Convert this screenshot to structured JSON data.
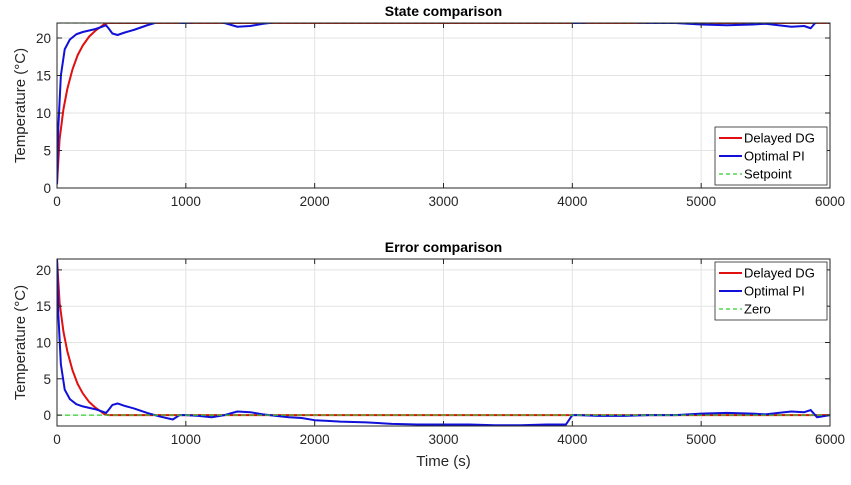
{
  "colors": {
    "delayed_dg": "#e01010",
    "optimal_pi": "#1010d8",
    "reference": "#33cc33",
    "grid": "#e3e3e3",
    "axis": "#262626"
  },
  "chart_data": [
    {
      "type": "line",
      "title": "State comparison",
      "xlabel": "",
      "ylabel": "Temperature (°C)",
      "xlim": [
        0,
        6000
      ],
      "ylim": [
        0,
        22
      ],
      "xticks": [
        0,
        1000,
        2000,
        3000,
        4000,
        5000,
        6000
      ],
      "yticks": [
        0,
        5,
        10,
        15,
        20
      ],
      "grid": true,
      "legend_position": "bottom-right",
      "series": [
        {
          "name": "Delayed DG",
          "color": "#e01010",
          "style": "solid",
          "x": [
            0,
            20,
            50,
            80,
            120,
            160,
            200,
            250,
            300,
            340,
            370,
            400,
            600,
            1000,
            2000,
            3000,
            4000,
            5000,
            6000
          ],
          "y": [
            0.5,
            6.5,
            10.5,
            13.2,
            15.8,
            17.7,
            19.0,
            20.2,
            21.0,
            21.5,
            21.9,
            22.0,
            22.0,
            22.0,
            22.0,
            22.0,
            22.0,
            22.0,
            22.0
          ]
        },
        {
          "name": "Optimal PI",
          "color": "#1010d8",
          "style": "solid",
          "x": [
            0,
            10,
            30,
            60,
            100,
            150,
            200,
            250,
            300,
            350,
            380,
            400,
            430,
            470,
            520,
            600,
            700,
            800,
            900,
            950,
            1000,
            1100,
            1200,
            1300,
            1400,
            1500,
            1600,
            1700,
            1800,
            1900,
            2000,
            2100,
            2200,
            2400,
            2600,
            2800,
            3000,
            3200,
            3400,
            3600,
            3800,
            3950,
            4000,
            4050,
            4200,
            4400,
            4600,
            4800,
            5000,
            5200,
            5400,
            5500,
            5600,
            5700,
            5800,
            5850,
            5900,
            6000
          ],
          "y": [
            0.5,
            8,
            15,
            18.5,
            19.8,
            20.5,
            20.8,
            21.0,
            21.2,
            21.5,
            21.7,
            21.3,
            20.6,
            20.4,
            20.7,
            21.1,
            21.7,
            22.2,
            22.6,
            22.0,
            22.0,
            22.1,
            22.3,
            22.0,
            21.5,
            21.6,
            21.9,
            22.1,
            22.3,
            22.4,
            22.7,
            22.8,
            22.9,
            23.0,
            23.2,
            23.3,
            23.3,
            23.3,
            23.4,
            23.4,
            23.3,
            23.3,
            22.0,
            22.0,
            22.1,
            22.1,
            22.0,
            22.0,
            21.8,
            21.7,
            21.8,
            21.9,
            21.7,
            21.5,
            21.6,
            21.3,
            22.3,
            22.0
          ]
        },
        {
          "name": "Setpoint",
          "color": "#33cc33",
          "style": "dashed",
          "x": [
            0,
            6000
          ],
          "y": [
            22,
            22
          ]
        }
      ]
    },
    {
      "type": "line",
      "title": "Error comparison",
      "xlabel": "Time (s)",
      "ylabel": "Temperature (°C)",
      "xlim": [
        0,
        6000
      ],
      "ylim": [
        -1.5,
        21.5
      ],
      "xticks": [
        0,
        1000,
        2000,
        3000,
        4000,
        5000,
        6000
      ],
      "yticks": [
        0,
        5,
        10,
        15,
        20
      ],
      "grid": true,
      "legend_position": "top-right",
      "series": [
        {
          "name": "Delayed DG",
          "color": "#e01010",
          "style": "solid",
          "x": [
            0,
            20,
            50,
            80,
            120,
            160,
            200,
            250,
            300,
            340,
            370,
            400,
            600,
            1000,
            2000,
            3000,
            4000,
            5000,
            6000
          ],
          "y": [
            21.5,
            15.5,
            11.5,
            8.8,
            6.2,
            4.3,
            3.0,
            1.8,
            1.0,
            0.5,
            0.1,
            0.0,
            0.0,
            0.0,
            0.0,
            0.0,
            0.0,
            0.0,
            0.0
          ]
        },
        {
          "name": "Optimal PI",
          "color": "#1010d8",
          "style": "solid",
          "x": [
            0,
            10,
            30,
            60,
            100,
            150,
            200,
            250,
            300,
            350,
            380,
            400,
            430,
            470,
            520,
            600,
            700,
            800,
            900,
            950,
            1000,
            1100,
            1200,
            1300,
            1400,
            1500,
            1600,
            1700,
            1800,
            1900,
            2000,
            2100,
            2200,
            2400,
            2600,
            2800,
            3000,
            3200,
            3400,
            3600,
            3800,
            3950,
            4000,
            4050,
            4200,
            4400,
            4600,
            4800,
            5000,
            5200,
            5400,
            5500,
            5600,
            5700,
            5800,
            5850,
            5900,
            6000
          ],
          "y": [
            21.5,
            14,
            7,
            3.5,
            2.2,
            1.5,
            1.2,
            1.0,
            0.8,
            0.5,
            0.3,
            0.7,
            1.4,
            1.6,
            1.3,
            0.9,
            0.3,
            -0.2,
            -0.6,
            0.0,
            0.0,
            -0.1,
            -0.3,
            0.0,
            0.5,
            0.4,
            0.1,
            -0.1,
            -0.3,
            -0.4,
            -0.7,
            -0.8,
            -0.9,
            -1.0,
            -1.2,
            -1.3,
            -1.3,
            -1.3,
            -1.4,
            -1.4,
            -1.3,
            -1.3,
            0.0,
            0.0,
            -0.1,
            -0.1,
            0.0,
            0.0,
            0.2,
            0.3,
            0.2,
            0.1,
            0.3,
            0.5,
            0.4,
            0.7,
            -0.3,
            0.0
          ]
        },
        {
          "name": "Zero",
          "color": "#33cc33",
          "style": "dashed",
          "x": [
            0,
            6000
          ],
          "y": [
            0,
            0
          ]
        }
      ]
    }
  ]
}
